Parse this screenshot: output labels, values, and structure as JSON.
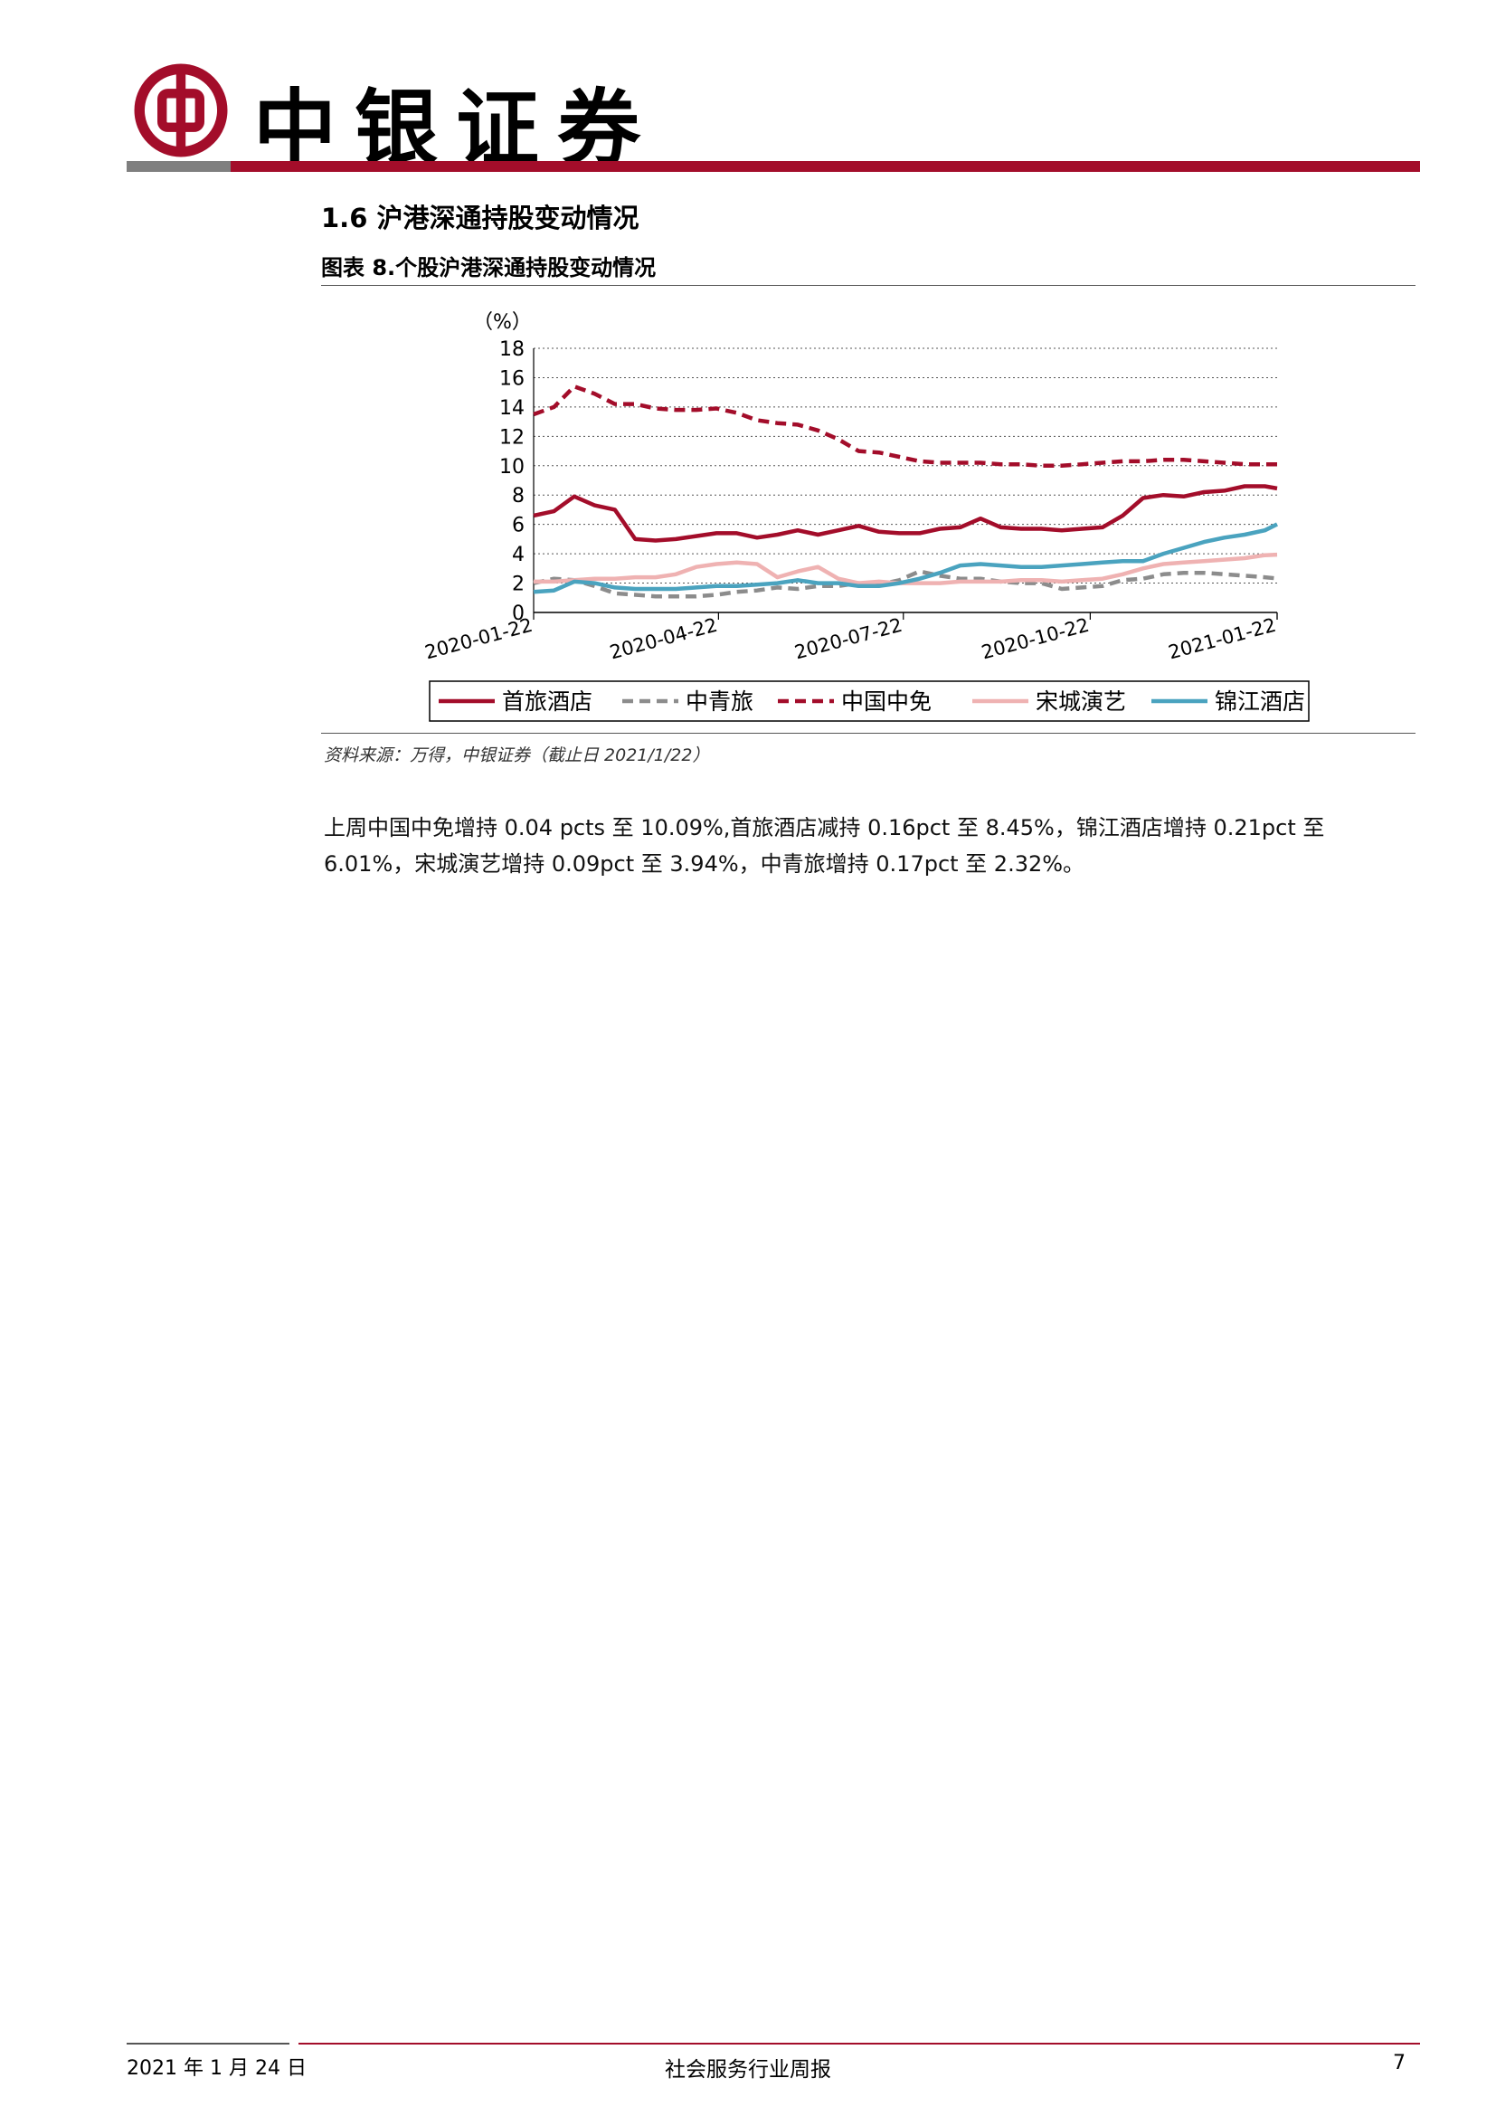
{
  "header": {
    "brand_name": "中银证券",
    "brand_color": "#a30d2a"
  },
  "section": {
    "title": "1.6 沪港深通持股变动情况",
    "figure_title": "图表 8.个股沪港深通持股变动情况",
    "source_note": "资料来源：万得，中银证券（截止日 2021/1/22）"
  },
  "body": {
    "paragraph": "上周中国中免增持 0.04 pcts 至 10.09%,首旅酒店减持 0.16pct 至 8.45%，锦江酒店增持 0.21pct 至 6.01%，宋城演艺增持 0.09pct 至 3.94%，中青旅增持 0.17pct 至 2.32%。"
  },
  "footer": {
    "date": "2021 年 1 月 24 日",
    "title": "社会服务行业周报",
    "page": "7"
  },
  "chart_data": {
    "type": "line",
    "ylabel": "（%）",
    "ylim": [
      0,
      18
    ],
    "yticks": [
      "18",
      "16",
      "14",
      "12",
      "10",
      "8",
      "6",
      "4",
      "2",
      "0"
    ],
    "xlabels": [
      "2020-01-22",
      "2020-04-22",
      "2020-07-22",
      "2020-10-22",
      "2021-01-22"
    ],
    "grid": "horizontal dotted",
    "legend_position": "bottom",
    "x": [
      "2020-01-22",
      "2020-02-01",
      "2020-02-11",
      "2020-02-21",
      "2020-03-02",
      "2020-03-12",
      "2020-03-22",
      "2020-04-01",
      "2020-04-11",
      "2020-04-21",
      "2020-05-01",
      "2020-05-11",
      "2020-05-21",
      "2020-05-31",
      "2020-06-10",
      "2020-06-20",
      "2020-06-30",
      "2020-07-10",
      "2020-07-20",
      "2020-07-30",
      "2020-08-09",
      "2020-08-19",
      "2020-08-29",
      "2020-09-08",
      "2020-09-18",
      "2020-09-28",
      "2020-10-08",
      "2020-10-18",
      "2020-10-28",
      "2020-11-07",
      "2020-11-17",
      "2020-11-27",
      "2020-12-07",
      "2020-12-17",
      "2020-12-27",
      "2021-01-06",
      "2021-01-16",
      "2021-01-22"
    ],
    "series": [
      {
        "name": "首旅酒店",
        "color": "#a30d2a",
        "dash": "solid",
        "values": [
          6.6,
          6.9,
          7.9,
          7.3,
          7.0,
          5.0,
          4.9,
          5.0,
          5.2,
          5.4,
          5.4,
          5.1,
          5.3,
          5.6,
          5.3,
          5.6,
          5.9,
          5.5,
          5.4,
          5.4,
          5.7,
          5.8,
          6.4,
          5.8,
          5.7,
          5.7,
          5.6,
          5.7,
          5.8,
          6.6,
          7.8,
          8.0,
          7.9,
          8.2,
          8.3,
          8.6,
          8.6,
          8.45
        ]
      },
      {
        "name": "中青旅",
        "color": "#8c8c8c",
        "dash": "dashed",
        "values": [
          2.0,
          2.3,
          2.2,
          1.8,
          1.3,
          1.2,
          1.1,
          1.1,
          1.1,
          1.2,
          1.4,
          1.5,
          1.7,
          1.6,
          1.8,
          1.8,
          2.0,
          1.9,
          2.2,
          2.8,
          2.5,
          2.3,
          2.3,
          2.1,
          2.0,
          2.0,
          1.6,
          1.7,
          1.8,
          2.2,
          2.3,
          2.6,
          2.7,
          2.7,
          2.6,
          2.5,
          2.4,
          2.32
        ]
      },
      {
        "name": "中国中免",
        "color": "#a30d2a",
        "dash": "dashed",
        "values": [
          13.5,
          14.0,
          15.4,
          14.9,
          14.2,
          14.2,
          13.9,
          13.8,
          13.8,
          13.9,
          13.6,
          13.1,
          12.9,
          12.8,
          12.4,
          11.8,
          11.0,
          10.9,
          10.6,
          10.3,
          10.2,
          10.2,
          10.2,
          10.1,
          10.1,
          10.0,
          10.0,
          10.1,
          10.2,
          10.3,
          10.3,
          10.4,
          10.4,
          10.3,
          10.2,
          10.1,
          10.1,
          10.09
        ]
      },
      {
        "name": "宋城演艺",
        "color": "#efb2b2",
        "dash": "solid",
        "values": [
          2.1,
          2.1,
          2.2,
          2.3,
          2.3,
          2.4,
          2.4,
          2.6,
          3.1,
          3.3,
          3.4,
          3.3,
          2.4,
          2.8,
          3.1,
          2.3,
          2.0,
          2.1,
          2.0,
          2.0,
          2.0,
          2.1,
          2.1,
          2.1,
          2.2,
          2.2,
          2.1,
          2.2,
          2.3,
          2.6,
          3.0,
          3.3,
          3.4,
          3.5,
          3.6,
          3.7,
          3.9,
          3.94
        ]
      },
      {
        "name": "锦江酒店",
        "color": "#4aa3bf",
        "dash": "solid",
        "values": [
          1.4,
          1.5,
          2.1,
          2.0,
          1.7,
          1.6,
          1.6,
          1.6,
          1.7,
          1.8,
          1.8,
          1.9,
          2.0,
          2.2,
          2.0,
          2.0,
          1.8,
          1.8,
          2.0,
          2.3,
          2.7,
          3.2,
          3.3,
          3.2,
          3.1,
          3.1,
          3.2,
          3.3,
          3.4,
          3.5,
          3.5,
          4.0,
          4.4,
          4.8,
          5.1,
          5.3,
          5.6,
          6.01
        ]
      }
    ]
  }
}
